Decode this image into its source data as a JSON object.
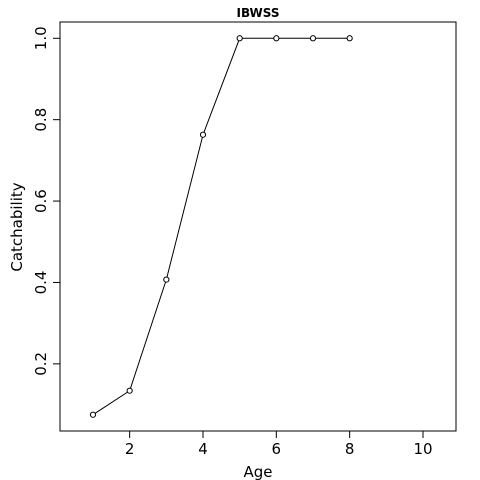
{
  "chart_data": {
    "type": "line",
    "title": "IBWSS",
    "x_label": "Age",
    "y_label": "Catchability",
    "x": [
      1,
      2,
      3,
      4,
      5,
      6,
      7,
      8
    ],
    "series": [
      {
        "name": "Catchability",
        "color": "#000000",
        "values": [
          0.075,
          0.134,
          0.407,
          0.763,
          1.0,
          1.0,
          1.0,
          1.0
        ]
      }
    ],
    "xlim": [
      0.1,
      10.9
    ],
    "xticks": [
      2,
      4,
      6,
      8,
      10
    ],
    "ylim": [
      0.035,
      1.04
    ],
    "yticks": [
      0.2,
      0.4,
      0.6,
      {
        "value": 0.8,
        "label": "0.8"
      },
      {
        "value": 1.0,
        "label": "1.0"
      }
    ]
  }
}
